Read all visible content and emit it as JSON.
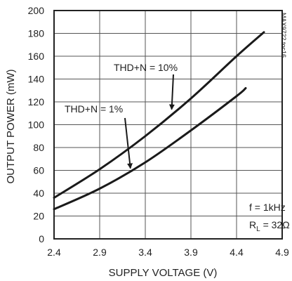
{
  "chart_data": {
    "type": "line",
    "xlabel": "SUPPLY VOLTAGE (V)",
    "ylabel": "OUTPUT POWER (mW)",
    "xlim": [
      2.4,
      4.9
    ],
    "ylim": [
      0,
      200
    ],
    "xticks": [
      "2.4",
      "2.9",
      "3.4",
      "3.9",
      "4.4",
      "4.9"
    ],
    "yticks": [
      "0",
      "20",
      "40",
      "60",
      "80",
      "100",
      "120",
      "140",
      "160",
      "180",
      "200"
    ],
    "grid": true,
    "series": [
      {
        "name": "THD+N = 10%",
        "x": [
          2.4,
          2.9,
          3.4,
          3.9,
          4.4,
          4.7
        ],
        "y": [
          36,
          61,
          90,
          123,
          160,
          181
        ]
      },
      {
        "name": "THD+N = 1%",
        "x": [
          2.4,
          2.9,
          3.4,
          3.9,
          4.4,
          4.5
        ],
        "y": [
          26,
          44,
          67,
          95,
          125,
          132
        ]
      }
    ],
    "annotations": {
      "freq": "f = 1kHz",
      "load_prefix": "R",
      "load_sub": "L",
      "load_suffix": " = 32Ω",
      "side_code": "MAX9722 toc16"
    }
  }
}
